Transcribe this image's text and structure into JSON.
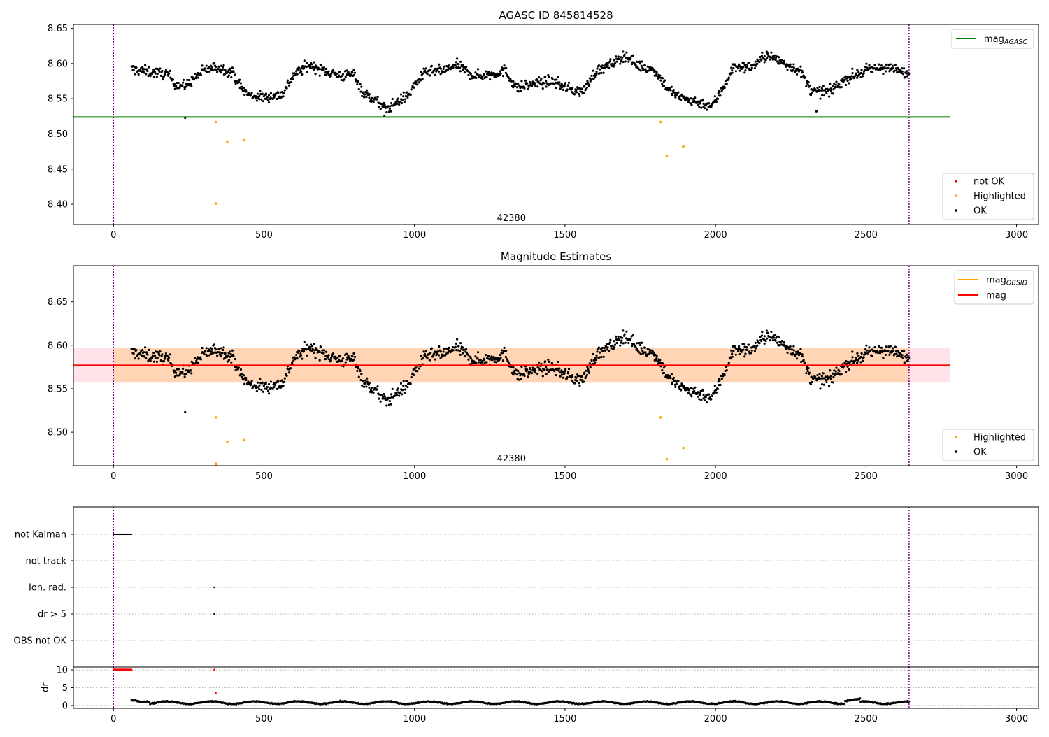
{
  "figure": {
    "width_label": ""
  },
  "chart_data": [
    {
      "id": "top",
      "type": "scatter",
      "title": "AGASC ID 845814528",
      "xlabel": "",
      "ylabel": "",
      "xlim": [
        -133,
        3073
      ],
      "ylim": [
        8.3713,
        8.6555
      ],
      "xticks": [
        0,
        500,
        1000,
        1500,
        2000,
        2500,
        3000
      ],
      "yticks": [
        8.4,
        8.45,
        8.5,
        8.55,
        8.6,
        8.65
      ],
      "yticklabels": [
        "8.40",
        "8.45",
        "8.50",
        "8.55",
        "8.60",
        "8.65"
      ],
      "annotation": {
        "text": "42380",
        "x": 1322,
        "y": 8.38
      },
      "vlines": [
        0,
        2643
      ],
      "hline": {
        "label_main": "mag",
        "label_sub": "AGASC",
        "y": 8.524,
        "xrange": [
          -133,
          2780
        ],
        "color": "#008000"
      },
      "legend_lines": [
        {
          "label_main": "mag",
          "label_sub": "AGASC",
          "color": "#008000"
        }
      ],
      "legend_scatter": [
        {
          "label": "not OK",
          "color": "#ff0000"
        },
        {
          "label": "Highlighted",
          "color": "#ffa500"
        },
        {
          "label": "OK",
          "color": "#000000"
        }
      ],
      "ok_series": {
        "x_start": 60,
        "x_end": 2643,
        "count": 1300
      },
      "highlighted": [
        [
          340,
          8.517
        ],
        [
          378,
          8.489
        ],
        [
          435,
          8.491
        ],
        [
          340,
          8.401
        ],
        [
          1818,
          8.517
        ],
        [
          1838,
          8.469
        ],
        [
          1893,
          8.482
        ]
      ],
      "extra_ok": [
        [
          238,
          8.523
        ],
        [
          900,
          8.525
        ],
        [
          2335,
          8.532
        ]
      ]
    },
    {
      "id": "middle",
      "type": "scatter",
      "title": "Magnitude Estimates",
      "xlabel": "",
      "ylabel": "",
      "xlim": [
        -133,
        3073
      ],
      "ylim": [
        8.4615,
        8.6915
      ],
      "xticks": [
        0,
        500,
        1000,
        1500,
        2000,
        2500,
        3000
      ],
      "yticks": [
        8.5,
        8.55,
        8.6,
        8.65
      ],
      "yticklabels": [
        "8.50",
        "8.55",
        "8.60",
        "8.65"
      ],
      "annotation": {
        "text": "42380",
        "x": 1322,
        "y": 8.4695
      },
      "vlines": [
        0,
        2643
      ],
      "mag_line": {
        "label": "mag",
        "y": 8.577,
        "color": "#ff0000"
      },
      "mag_band": {
        "y_low": 8.557,
        "y_high": 8.597,
        "xrange": [
          -133,
          2780
        ],
        "color_a": "#ffc0cb",
        "color_b": "#ffa500"
      },
      "legend_lines": [
        {
          "label_main": "mag",
          "label_sub": "OBSID",
          "color": "#ffa500"
        },
        {
          "label_main": "mag",
          "label_sub": "",
          "color": "#ff0000"
        }
      ],
      "legend_scatter": [
        {
          "label": "Highlighted",
          "color": "#ffa500"
        },
        {
          "label": "OK",
          "color": "#000000"
        }
      ],
      "highlighted": [
        [
          340,
          8.517
        ],
        [
          378,
          8.489
        ],
        [
          435,
          8.491
        ],
        [
          340,
          8.464
        ],
        [
          342,
          8.463
        ],
        [
          1818,
          8.517
        ],
        [
          1838,
          8.469
        ],
        [
          1893,
          8.482
        ]
      ],
      "extra_ok": [
        [
          238,
          8.523
        ]
      ]
    },
    {
      "id": "flags",
      "type": "scatter",
      "title": "",
      "xlim": [
        -133,
        3073
      ],
      "categories": [
        "not Kalman",
        "not track",
        "Ion. rad.",
        "dr > 5",
        "OBS not OK"
      ],
      "not_kalman_range": [
        0,
        60
      ],
      "ion_rad_points": [
        335
      ],
      "dr5_points": [
        335
      ],
      "vlines": [
        0,
        2643
      ]
    },
    {
      "id": "dr",
      "type": "scatter",
      "ylabel": "dr",
      "xlim": [
        -133,
        3073
      ],
      "ylim": [
        -0.8,
        10.8
      ],
      "yticks": [
        0,
        5,
        10
      ],
      "yticklabels": [
        "0",
        "5",
        "10"
      ],
      "xticks": [
        0,
        500,
        1000,
        1500,
        2000,
        2500,
        3000
      ],
      "clipped_red_range": [
        0,
        60
      ],
      "clipped_red_extra": [
        335
      ],
      "red_points": [
        [
          340,
          3.5
        ]
      ],
      "vlines": [
        0,
        2643
      ]
    }
  ]
}
